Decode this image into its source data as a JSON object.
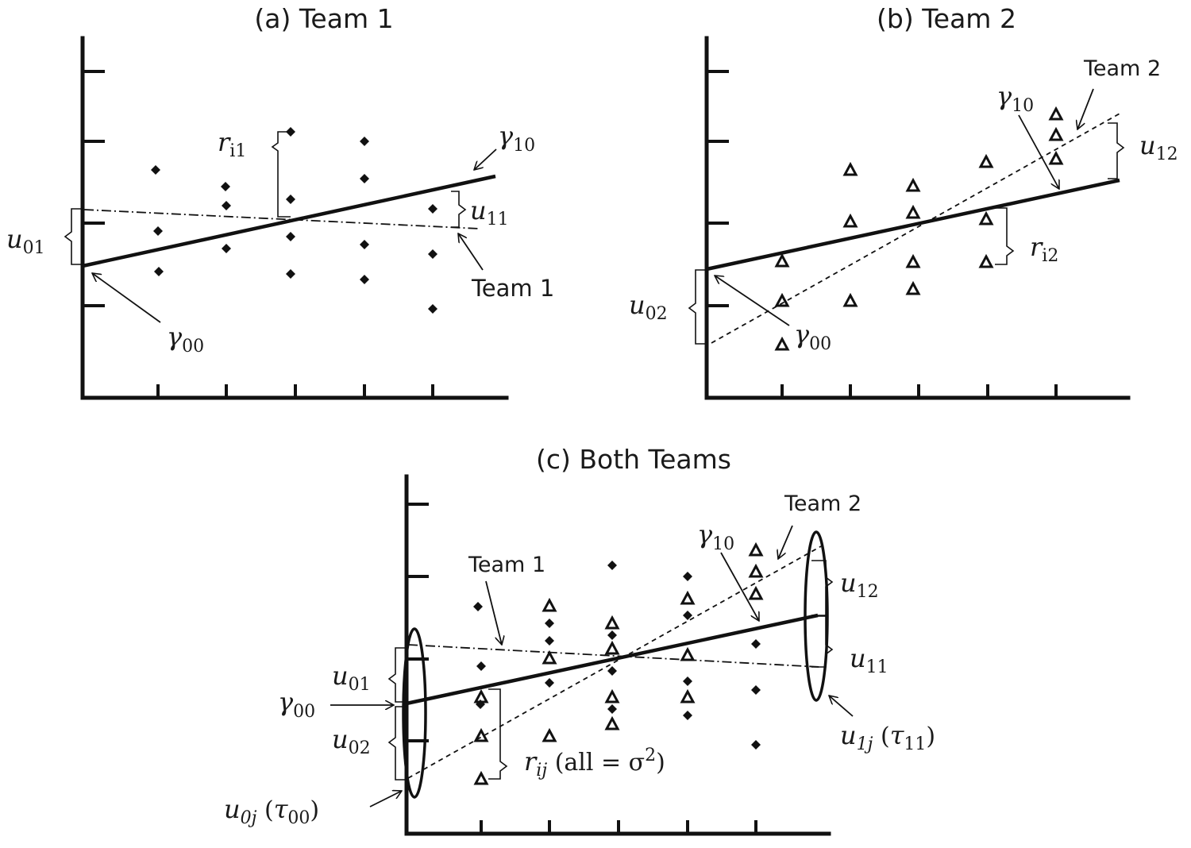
{
  "panels": {
    "a": {
      "title": "(a) Team 1",
      "team_label": "Team 1",
      "labels": {
        "r_i1": [
          "r",
          "i1"
        ],
        "gamma10": [
          "γ",
          "10"
        ],
        "u11": [
          "u",
          "11"
        ],
        "u01": [
          "u",
          "01"
        ],
        "gamma00": [
          "γ",
          "00"
        ]
      }
    },
    "b": {
      "title": "(b) Team 2",
      "team_label": "Team 2",
      "labels": {
        "gamma10": [
          "γ",
          "10"
        ],
        "u12": [
          "u",
          "12"
        ],
        "r_i2": [
          "r",
          "i2"
        ],
        "u02": [
          "u",
          "02"
        ],
        "gamma00": [
          "γ",
          "00"
        ]
      }
    },
    "c": {
      "title": "(c) Both Teams",
      "team1_label": "Team 1",
      "team2_label": "Team 2",
      "labels": {
        "gamma10": [
          "γ",
          "10"
        ],
        "u12": [
          "u",
          "12"
        ],
        "u11": [
          "u",
          "11"
        ],
        "u1j": [
          "u",
          "1j",
          " (",
          "τ",
          "11",
          ")"
        ],
        "u01": [
          "u",
          "01"
        ],
        "gamma00": [
          "γ",
          "00"
        ],
        "u02": [
          "u",
          "02"
        ],
        "rij": [
          "r",
          "ij",
          " (all = σ",
          "2",
          ")"
        ],
        "u0j": [
          "u",
          "0j",
          " (",
          "τ",
          "00",
          ")"
        ]
      }
    }
  },
  "colors": {
    "ink": "#111111",
    "background": "#ffffff"
  },
  "marker_names": {
    "team1": "filled-diamond",
    "team2": "open-triangle"
  }
}
